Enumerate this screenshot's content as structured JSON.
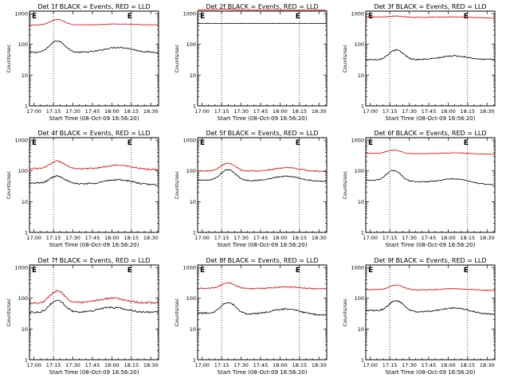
{
  "figure": {
    "start_time_label": "Start Time (08-Oct-09 16:56:20)"
  },
  "axes_common": {
    "ylabel": "Counts/sec",
    "y_ticks": [
      "1",
      "10",
      "100",
      "1000"
    ],
    "x_ticks": [
      "17:00",
      "17:15",
      "17:30",
      "17:45",
      "18:00",
      "18:15",
      "18:30"
    ],
    "colors": {
      "events": "#000000",
      "lld": "#e00000"
    }
  },
  "chart_data": [
    {
      "type": "line",
      "panel": 1,
      "title": "Det 1f BLACK = Events, RED = LLD",
      "xlabel": "Start Time (08-Oct-09 16:56:20)",
      "ylabel": "Counts/sec",
      "x_range_min": [
        -3.5,
        96
      ],
      "ylim": [
        1,
        1200
      ],
      "y_scale": "log",
      "markers": {
        "start_min": 15,
        "end_min": 75,
        "start_label": "E",
        "end_label": "E"
      },
      "series": [
        {
          "key": "events",
          "color": "#000000",
          "base": 55,
          "peak": 130,
          "peak_at": 18,
          "peak_width": 7,
          "drift": 0,
          "hump": 25,
          "hump_at": 65,
          "noise": 0.05
        },
        {
          "key": "lld",
          "color": "#e00000",
          "base": 430,
          "peak": 640,
          "peak_at": 18,
          "peak_width": 7,
          "drift": 0,
          "hump": 30,
          "hump_at": 65,
          "noise": 0.02
        }
      ]
    },
    {
      "type": "line",
      "panel": 2,
      "title": "Det 2f BLACK = Events, RED = LLD",
      "xlabel": "Start Time (08-Oct-09 16:56:20)",
      "ylabel": "Counts/sec",
      "x_range_min": [
        -3.5,
        96
      ],
      "ylim": [
        1,
        1200
      ],
      "y_scale": "log",
      "markers": {
        "start_min": 15,
        "end_min": 75,
        "start_label": "E",
        "end_label": "E"
      },
      "series": [
        {
          "key": "events",
          "color": "#000000",
          "base": 480,
          "peak": 480,
          "peak_at": 18,
          "peak_width": 7,
          "drift": 0,
          "hump": 0,
          "hump_at": 65,
          "noise": 0.01
        },
        {
          "key": "lld",
          "color": "#e00000",
          "base": 1330,
          "peak": 1380,
          "peak_at": 18,
          "peak_width": 7,
          "drift": -40,
          "hump": 0,
          "hump_at": 65,
          "noise": 0.015
        }
      ]
    },
    {
      "type": "line",
      "panel": 3,
      "title": "Det 3f BLACK = Events, RED = LLD",
      "xlabel": "Start Time (08-Oct-09 16:56:20)",
      "ylabel": "Counts/sec",
      "x_range_min": [
        -3.5,
        96
      ],
      "ylim": [
        1,
        1200
      ],
      "y_scale": "log",
      "markers": {
        "start_min": 15,
        "end_min": 75,
        "start_label": "E",
        "end_label": "E"
      },
      "series": [
        {
          "key": "events",
          "color": "#000000",
          "base": 32,
          "peak": 65,
          "peak_at": 20,
          "peak_width": 7,
          "drift": 0,
          "hump": 10,
          "hump_at": 65,
          "noise": 0.05
        },
        {
          "key": "lld",
          "color": "#e00000",
          "base": 780,
          "peak": 840,
          "peak_at": 20,
          "peak_width": 7,
          "drift": -60,
          "hump": 40,
          "hump_at": 65,
          "noise": 0.03
        }
      ]
    },
    {
      "type": "line",
      "panel": 4,
      "title": "Det 4f BLACK = Events, RED = LLD",
      "xlabel": "Start Time (08-Oct-09 16:56:20)",
      "ylabel": "Counts/sec",
      "x_range_min": [
        -3.5,
        96
      ],
      "ylim": [
        1,
        1200
      ],
      "y_scale": "log",
      "markers": {
        "start_min": 15,
        "end_min": 75,
        "start_label": "E",
        "end_label": "E"
      },
      "series": [
        {
          "key": "events",
          "color": "#000000",
          "base": 40,
          "peak": 70,
          "peak_at": 18,
          "peak_width": 7,
          "drift": -5,
          "hump": 15,
          "hump_at": 65,
          "noise": 0.06
        },
        {
          "key": "lld",
          "color": "#e00000",
          "base": 120,
          "peak": 210,
          "peak_at": 18,
          "peak_width": 7,
          "drift": -10,
          "hump": 40,
          "hump_at": 65,
          "noise": 0.05
        }
      ]
    },
    {
      "type": "line",
      "panel": 5,
      "title": "Det 5f BLACK = Events, RED = LLD",
      "xlabel": "Start Time (08-Oct-09 16:56:20)",
      "ylabel": "Counts/sec",
      "x_range_min": [
        -3.5,
        96
      ],
      "ylim": [
        1,
        1200
      ],
      "y_scale": "log",
      "markers": {
        "start_min": 15,
        "end_min": 75,
        "start_label": "E",
        "end_label": "E"
      },
      "series": [
        {
          "key": "events",
          "color": "#000000",
          "base": 50,
          "peak": 110,
          "peak_at": 20,
          "peak_width": 7,
          "drift": -5,
          "hump": 20,
          "hump_at": 65,
          "noise": 0.04
        },
        {
          "key": "lld",
          "color": "#e00000",
          "base": 100,
          "peak": 180,
          "peak_at": 20,
          "peak_width": 7,
          "drift": -5,
          "hump": 30,
          "hump_at": 65,
          "noise": 0.04
        }
      ]
    },
    {
      "type": "line",
      "panel": 6,
      "title": "Det 6f BLACK = Events, RED = LLD",
      "xlabel": "Start Time (08-Oct-09 16:56:20)",
      "ylabel": "Counts/sec",
      "x_range_min": [
        -3.5,
        96
      ],
      "ylim": [
        1,
        1200
      ],
      "y_scale": "log",
      "markers": {
        "start_min": 15,
        "end_min": 75,
        "start_label": "E",
        "end_label": "E"
      },
      "series": [
        {
          "key": "events",
          "color": "#000000",
          "base": 50,
          "peak": 105,
          "peak_at": 18,
          "peak_width": 7,
          "drift": -15,
          "hump": 15,
          "hump_at": 65,
          "noise": 0.04
        },
        {
          "key": "lld",
          "color": "#e00000",
          "base": 370,
          "peak": 480,
          "peak_at": 18,
          "peak_width": 7,
          "drift": -20,
          "hump": 30,
          "hump_at": 65,
          "noise": 0.02
        }
      ]
    },
    {
      "type": "line",
      "panel": 7,
      "title": "Det 7f BLACK = Events, RED = LLD",
      "xlabel": "Start Time (08-Oct-09 16:56:20)",
      "ylabel": "Counts/sec",
      "x_range_min": [
        -3.5,
        96
      ],
      "ylim": [
        1,
        1200
      ],
      "y_scale": "log",
      "markers": {
        "start_min": 15,
        "end_min": 75,
        "start_label": "E",
        "end_label": "E"
      },
      "series": [
        {
          "key": "events",
          "color": "#000000",
          "base": 35,
          "peak": 85,
          "peak_at": 18,
          "peak_width": 7,
          "drift": 0,
          "hump": 15,
          "hump_at": 60,
          "noise": 0.07
        },
        {
          "key": "lld",
          "color": "#e00000",
          "base": 70,
          "peak": 170,
          "peak_at": 18,
          "peak_width": 7,
          "drift": 0,
          "hump": 30,
          "hump_at": 60,
          "noise": 0.07
        }
      ]
    },
    {
      "type": "line",
      "panel": 8,
      "title": "Det 8f BLACK = Events, RED = LLD",
      "xlabel": "Start Time (08-Oct-09 16:56:20)",
      "ylabel": "Counts/sec",
      "x_range_min": [
        -3.5,
        96
      ],
      "ylim": [
        1,
        1200
      ],
      "y_scale": "log",
      "markers": {
        "start_min": 15,
        "end_min": 75,
        "start_label": "E",
        "end_label": "E"
      },
      "series": [
        {
          "key": "events",
          "color": "#000000",
          "base": 33,
          "peak": 75,
          "peak_at": 20,
          "peak_width": 7,
          "drift": -5,
          "hump": 15,
          "hump_at": 65,
          "noise": 0.06
        },
        {
          "key": "lld",
          "color": "#e00000",
          "base": 210,
          "peak": 320,
          "peak_at": 20,
          "peak_width": 7,
          "drift": -10,
          "hump": 30,
          "hump_at": 65,
          "noise": 0.04
        }
      ]
    },
    {
      "type": "line",
      "panel": 9,
      "title": "Det 9f BLACK = Events, RED = LLD",
      "xlabel": "Start Time (08-Oct-09 16:56:20)",
      "ylabel": "Counts/sec",
      "x_range_min": [
        -3.5,
        96
      ],
      "ylim": [
        1,
        1200
      ],
      "y_scale": "log",
      "markers": {
        "start_min": 15,
        "end_min": 75,
        "start_label": "E",
        "end_label": "E"
      },
      "series": [
        {
          "key": "events",
          "color": "#000000",
          "base": 40,
          "peak": 85,
          "peak_at": 20,
          "peak_width": 7,
          "drift": -10,
          "hump": 15,
          "hump_at": 65,
          "noise": 0.05
        },
        {
          "key": "lld",
          "color": "#e00000",
          "base": 190,
          "peak": 270,
          "peak_at": 20,
          "peak_width": 7,
          "drift": -10,
          "hump": 20,
          "hump_at": 65,
          "noise": 0.03
        }
      ]
    }
  ]
}
